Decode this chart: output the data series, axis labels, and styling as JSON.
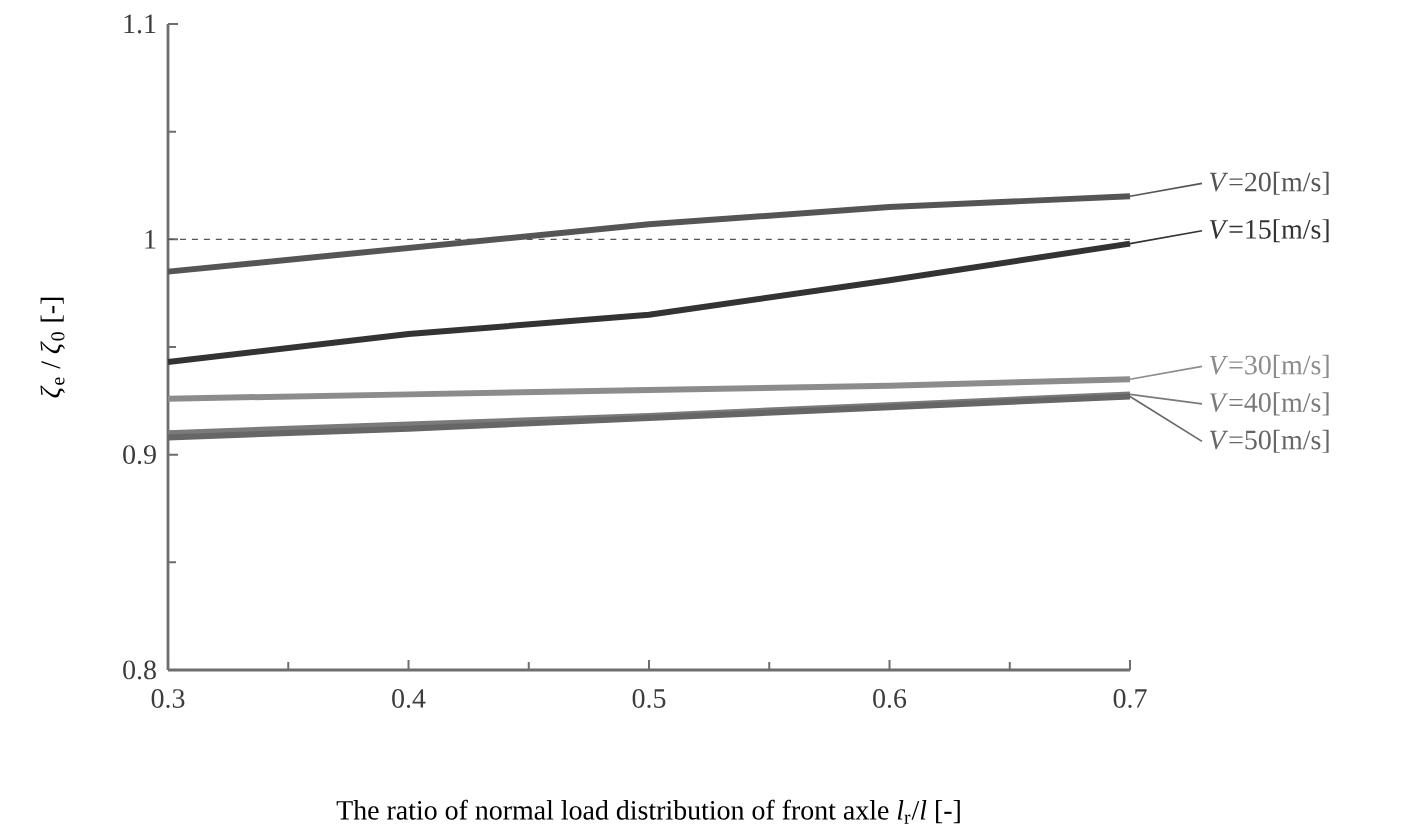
{
  "chart_data": {
    "type": "line",
    "xlabel": "The ratio of normal load distribution of front axle *l*$_{r}$/*l* [-]",
    "ylabel": "*ζ*$_{e}$ / *ζ*$_{0}$ [-]",
    "x": [
      0.3,
      0.4,
      0.5,
      0.6,
      0.7
    ],
    "series": [
      {
        "name": "*V*=20[m/s]",
        "color": "#555555",
        "values": [
          0.985,
          0.996,
          1.007,
          1.015,
          1.02
        ]
      },
      {
        "name": "*V*=15[m/s]",
        "color": "#333333",
        "values": [
          0.943,
          0.956,
          0.965,
          0.981,
          0.998
        ]
      },
      {
        "name": "*V*=30[m/s]",
        "color": "#8c8c8c",
        "values": [
          0.926,
          0.928,
          0.93,
          0.932,
          0.935
        ]
      },
      {
        "name": "*V*=40[m/s]",
        "color": "#7a7a7a",
        "values": [
          0.91,
          0.914,
          0.918,
          0.923,
          0.928
        ]
      },
      {
        "name": "*V*=50[m/s]",
        "color": "#666666",
        "values": [
          0.908,
          0.912,
          0.917,
          0.922,
          0.927
        ]
      }
    ],
    "xlim": [
      0.3,
      0.7
    ],
    "ylim": [
      0.8,
      1.1
    ],
    "xticks": [
      0.3,
      0.4,
      0.5,
      0.6,
      0.7
    ],
    "yticks": [
      0.8,
      0.9,
      1,
      1.1
    ],
    "ref_lines": [
      {
        "axis": "y",
        "value": 1,
        "line_style": "dashed",
        "color": "#555555"
      }
    ],
    "legend": "right",
    "grid": false,
    "marker": "none",
    "line_style": "solid"
  }
}
